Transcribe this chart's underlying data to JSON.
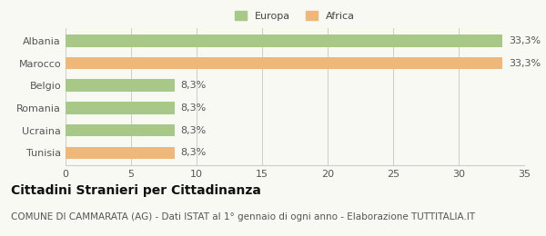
{
  "categories": [
    "Albania",
    "Marocco",
    "Belgio",
    "Romania",
    "Ucraina",
    "Tunisia"
  ],
  "values": [
    33.3,
    33.3,
    8.3,
    8.3,
    8.3,
    8.3
  ],
  "bar_colors": [
    "#a8c888",
    "#f0b878",
    "#a8c888",
    "#a8c888",
    "#a8c888",
    "#f0b878"
  ],
  "legend_labels": [
    "Europa",
    "Africa"
  ],
  "legend_colors": [
    "#a8c888",
    "#f0b878"
  ],
  "value_labels": [
    "33,3%",
    "33,3%",
    "8,3%",
    "8,3%",
    "8,3%",
    "8,3%"
  ],
  "xlim": [
    0,
    35
  ],
  "xticks": [
    0,
    5,
    10,
    15,
    20,
    25,
    30,
    35
  ],
  "title": "Cittadini Stranieri per Cittadinanza",
  "subtitle": "COMUNE DI CAMMARATA (AG) - Dati ISTAT al 1° gennaio di ogni anno - Elaborazione TUTTITALIA.IT",
  "background_color": "#f9f9f4",
  "bar_height": 0.55,
  "title_fontsize": 10,
  "subtitle_fontsize": 7.5,
  "label_fontsize": 8,
  "tick_fontsize": 8
}
